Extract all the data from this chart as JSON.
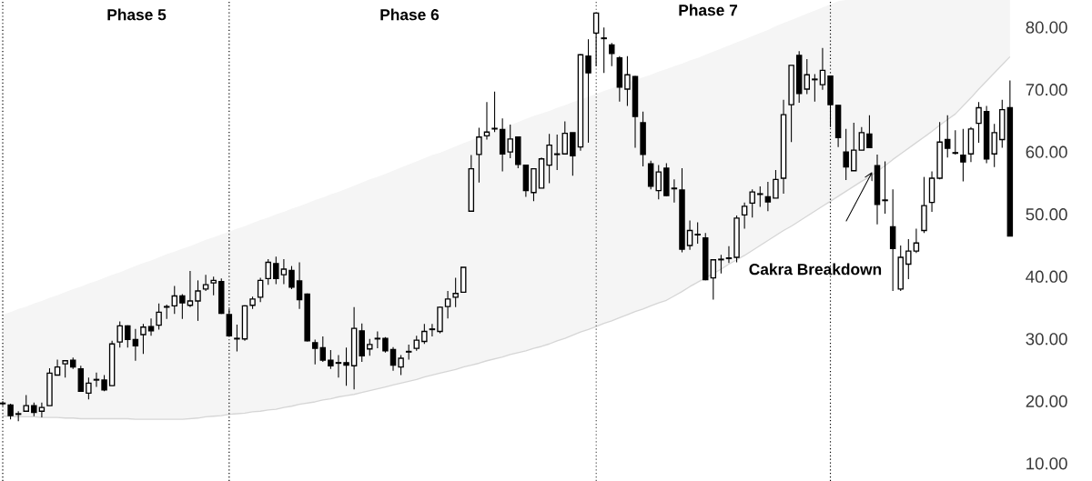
{
  "chart_data": {
    "type": "candlestick",
    "categories": [
      null,
      null,
      null,
      null,
      null,
      null,
      null,
      null,
      null,
      null,
      null,
      null,
      null,
      null,
      null,
      null,
      null,
      null,
      null,
      null,
      null,
      null,
      null,
      null,
      null,
      null,
      null,
      null,
      null,
      null,
      null,
      null,
      null,
      null,
      null,
      null,
      null,
      null,
      null,
      null,
      null,
      null,
      null,
      null,
      null,
      null,
      null,
      null,
      null,
      null,
      null,
      null,
      null,
      null,
      null,
      null,
      null,
      null,
      null,
      null,
      null,
      null,
      null,
      null,
      null,
      null,
      null,
      null,
      null,
      null,
      null,
      null,
      null,
      null,
      null,
      null,
      null,
      null,
      null,
      null,
      null,
      null,
      null,
      null,
      null,
      null,
      null,
      null,
      null,
      null,
      null,
      null,
      null,
      null,
      null,
      null,
      null,
      null,
      null,
      null,
      null,
      null,
      null,
      null,
      null,
      null,
      null,
      null,
      null,
      null,
      null,
      null,
      null,
      null,
      null,
      null,
      null,
      null,
      null,
      null,
      null,
      null,
      null,
      null,
      null,
      null,
      null,
      null,
      null,
      null
    ],
    "color": "#000000",
    "ohlc": [
      [
        19.7,
        20.0,
        19.3,
        19.6
      ],
      [
        19.4,
        19.6,
        17.1,
        17.7
      ],
      [
        18.0,
        18.4,
        16.8,
        17.9
      ],
      [
        18.4,
        21.0,
        18.3,
        19.3
      ],
      [
        19.3,
        19.8,
        17.6,
        18.2
      ],
      [
        18.4,
        19.8,
        17.4,
        19.0
      ],
      [
        19.3,
        25.3,
        19.3,
        24.5
      ],
      [
        24.2,
        26.7,
        24.2,
        25.5
      ],
      [
        26.0,
        26.6,
        23.8,
        26.5
      ],
      [
        26.6,
        27.0,
        25.2,
        25.5
      ],
      [
        25.2,
        25.7,
        21.5,
        21.6
      ],
      [
        21.3,
        23.8,
        20.3,
        22.9
      ],
      [
        23.5,
        24.6,
        22.3,
        23.4
      ],
      [
        23.4,
        24.2,
        21.6,
        21.8
      ],
      [
        22.5,
        29.7,
        22.5,
        29.2
      ],
      [
        29.5,
        32.8,
        28.6,
        32.1
      ],
      [
        32.1,
        32.2,
        28.6,
        29.9
      ],
      [
        29.9,
        31.6,
        26.5,
        28.9
      ],
      [
        30.7,
        32.4,
        27.6,
        31.9
      ],
      [
        32.0,
        33.3,
        30.5,
        31.3
      ],
      [
        32.2,
        35.7,
        31.5,
        34.3
      ],
      [
        35.2,
        35.5,
        33.2,
        35.1
      ],
      [
        35.3,
        38.5,
        34.0,
        36.9
      ],
      [
        36.9,
        37.2,
        33.2,
        35.8
      ],
      [
        35.4,
        40.9,
        35.1,
        36.1
      ],
      [
        36.1,
        39.4,
        32.9,
        37.7
      ],
      [
        38.0,
        40.3,
        37.7,
        38.7
      ],
      [
        39.0,
        40.0,
        37.0,
        39.4
      ],
      [
        39.2,
        39.7,
        34.0,
        34.1
      ],
      [
        33.9,
        34.8,
        30.4,
        30.5
      ],
      [
        30.1,
        32.3,
        28.0,
        30.0
      ],
      [
        30.0,
        35.4,
        29.7,
        35.3
      ],
      [
        35.4,
        36.8,
        34.8,
        36.4
      ],
      [
        36.7,
        39.8,
        35.9,
        39.4
      ],
      [
        39.7,
        42.8,
        38.7,
        42.3
      ],
      [
        42.1,
        43.2,
        38.8,
        39.7
      ],
      [
        40.3,
        42.8,
        38.8,
        41.2
      ],
      [
        41.0,
        41.7,
        38.0,
        38.3
      ],
      [
        39.3,
        42.3,
        34.8,
        36.3
      ],
      [
        37.2,
        37.3,
        29.6,
        29.7
      ],
      [
        29.4,
        29.9,
        25.9,
        28.5
      ],
      [
        28.6,
        30.4,
        26.3,
        26.6
      ],
      [
        26.6,
        28.2,
        25.2,
        25.7
      ],
      [
        26.2,
        27.4,
        23.8,
        26.1
      ],
      [
        26.2,
        28.6,
        22.5,
        25.8
      ],
      [
        25.7,
        35.1,
        21.9,
        31.7
      ],
      [
        31.3,
        32.5,
        26.3,
        27.3
      ],
      [
        28.4,
        30.0,
        27.3,
        29.1
      ],
      [
        30.1,
        31.2,
        28.5,
        30.0
      ],
      [
        30.1,
        30.3,
        27.8,
        28.1
      ],
      [
        28.3,
        28.7,
        24.9,
        25.8
      ],
      [
        25.5,
        27.4,
        24.2,
        26.9
      ],
      [
        27.9,
        29.1,
        26.7,
        28.0
      ],
      [
        28.5,
        30.5,
        28.1,
        29.8
      ],
      [
        29.6,
        32.4,
        29.2,
        31.2
      ],
      [
        31.5,
        32.4,
        30.4,
        31.6
      ],
      [
        31.2,
        35.2,
        30.9,
        35.1
      ],
      [
        35.2,
        37.7,
        33.3,
        36.4
      ],
      [
        36.7,
        39.8,
        35.1,
        37.3
      ],
      [
        37.5,
        41.5,
        37.5,
        41.5
      ],
      [
        50.5,
        59.5,
        50.5,
        57.3
      ],
      [
        59.6,
        63.9,
        55.1,
        62.4
      ],
      [
        62.6,
        68.0,
        62.0,
        63.2
      ],
      [
        63.7,
        69.7,
        63.2,
        63.8
      ],
      [
        63.6,
        65.4,
        56.9,
        59.7
      ],
      [
        60.0,
        64.4,
        59.0,
        62.1
      ],
      [
        62.4,
        62.4,
        57.4,
        58.0
      ],
      [
        57.9,
        57.9,
        52.8,
        53.8
      ],
      [
        53.5,
        57.3,
        52.1,
        57.3
      ],
      [
        54.2,
        59.1,
        54.2,
        58.9
      ],
      [
        57.9,
        62.9,
        55.0,
        61.1
      ],
      [
        59.6,
        62.8,
        57.1,
        59.7
      ],
      [
        59.7,
        64.9,
        59.7,
        63.0
      ],
      [
        63.1,
        63.1,
        56.2,
        59.4
      ],
      [
        60.8,
        75.7,
        60.2,
        75.6
      ],
      [
        75.4,
        78.1,
        61.5,
        72.7
      ],
      [
        79.1,
        82.4,
        73.8,
        82.3
      ],
      [
        78.3,
        80.0,
        72.7,
        78.2
      ],
      [
        77.2,
        77.5,
        73.8,
        75.8
      ],
      [
        75.1,
        75.4,
        68.1,
        70.4
      ],
      [
        70.1,
        75.4,
        67.4,
        72.4
      ],
      [
        72.1,
        72.2,
        60.7,
        65.7
      ],
      [
        64.7,
        66.5,
        57.7,
        59.6
      ],
      [
        58.1,
        58.6,
        54.0,
        54.5
      ],
      [
        53.8,
        57.9,
        52.4,
        56.8
      ],
      [
        57.4,
        58.2,
        52.9,
        53.0
      ],
      [
        54.2,
        55.6,
        51.9,
        54.1
      ],
      [
        53.9,
        57.4,
        43.9,
        44.4
      ],
      [
        45.0,
        49.0,
        44.3,
        47.4
      ],
      [
        46.7,
        48.7,
        45.3,
        46.8
      ],
      [
        46.2,
        47.0,
        39.4,
        39.5
      ],
      [
        39.8,
        42.7,
        36.3,
        42.7
      ],
      [
        42.7,
        43.5,
        40.5,
        42.8
      ],
      [
        42.9,
        44.9,
        42.2,
        43.0
      ],
      [
        43.1,
        49.8,
        42.3,
        49.4
      ],
      [
        49.9,
        51.9,
        47.7,
        51.3
      ],
      [
        51.8,
        54.0,
        49.5,
        53.6
      ],
      [
        53.2,
        54.5,
        51.2,
        53.3
      ],
      [
        52.8,
        55.2,
        50.5,
        52.0
      ],
      [
        52.6,
        57.1,
        52.6,
        55.6
      ],
      [
        55.8,
        68.4,
        53.3,
        66.0
      ],
      [
        67.6,
        73.9,
        61.6,
        73.9
      ],
      [
        75.5,
        76.2,
        67.9,
        69.4
      ],
      [
        70.1,
        74.9,
        69.3,
        72.4
      ],
      [
        71.6,
        72.5,
        68.1,
        71.7
      ],
      [
        70.8,
        76.7,
        70.0,
        73.1
      ],
      [
        72.2,
        72.2,
        64.0,
        67.6
      ],
      [
        67.5,
        67.5,
        60.8,
        62.3
      ],
      [
        60.0,
        63.7,
        55.5,
        57.6
      ],
      [
        57.0,
        64.7,
        57.0,
        60.3
      ],
      [
        60.3,
        64.0,
        60.3,
        63.1
      ],
      [
        62.9,
        65.9,
        60.7,
        60.7
      ],
      [
        57.8,
        59.6,
        48.4,
        51.6
      ],
      [
        52.3,
        58.5,
        50.1,
        52.2
      ],
      [
        48.0,
        54.0,
        37.7,
        44.5
      ],
      [
        38.0,
        45.0,
        37.7,
        43.1
      ],
      [
        42.0,
        46.0,
        39.6,
        44.1
      ],
      [
        44.1,
        47.7,
        43.8,
        45.4
      ],
      [
        47.4,
        56.0,
        47.0,
        51.4
      ],
      [
        51.9,
        56.9,
        50.4,
        55.8
      ],
      [
        55.8,
        64.8,
        55.6,
        61.6
      ],
      [
        62.0,
        65.9,
        59.1,
        60.6
      ],
      [
        59.9,
        63.5,
        59.6,
        59.8
      ],
      [
        59.5,
        63.7,
        55.3,
        58.4
      ],
      [
        59.7,
        64.0,
        58.4,
        63.7
      ],
      [
        64.6,
        68.0,
        61.5,
        67.1
      ],
      [
        66.5,
        67.4,
        58.2,
        58.9
      ],
      [
        59.7,
        64.5,
        57.6,
        63.1
      ],
      [
        62.0,
        68.4,
        60.7,
        66.8
      ],
      [
        67.1,
        71.5,
        46.5,
        46.5
      ]
    ],
    "series": [
      {
        "type": "line",
        "color": "#d6d6d6",
        "values": [
          17.6,
          17.6,
          17.5,
          17.5,
          17.5,
          17.4,
          17.4,
          17.4,
          17.3,
          17.3,
          17.2,
          17.2,
          17.2,
          17.2,
          17.2,
          17.2,
          17.2,
          17.1,
          17.1,
          17.1,
          17.1,
          17.1,
          17.1,
          17.1,
          17.2,
          17.3,
          17.5,
          17.6,
          17.7,
          17.9,
          18.0,
          18.1,
          18.3,
          18.4,
          18.6,
          18.7,
          19.0,
          19.2,
          19.5,
          19.7,
          19.9,
          20.2,
          20.4,
          20.7,
          20.9,
          21.1,
          21.4,
          21.7,
          22.0,
          22.3,
          22.6,
          22.9,
          23.2,
          23.5,
          23.9,
          24.2,
          24.5,
          24.8,
          25.1,
          25.5,
          25.8,
          26.1,
          26.5,
          26.8,
          27.1,
          27.5,
          27.8,
          28.1,
          28.5,
          28.8,
          29.2,
          29.7,
          30.1,
          30.6,
          31.1,
          31.5,
          32.0,
          32.5,
          32.9,
          33.4,
          33.9,
          34.4,
          34.8,
          35.3,
          35.8,
          36.2,
          36.9,
          37.6,
          38.4,
          39.1,
          39.8,
          40.5,
          41.2,
          42.0,
          42.7,
          43.4,
          44.2,
          45.0,
          45.8,
          46.6,
          47.4,
          48.1,
          48.9,
          49.7,
          50.5,
          51.3,
          52.1,
          52.9,
          53.7,
          54.5,
          55.3,
          56.0,
          56.9,
          57.8,
          58.8,
          59.7,
          60.6,
          61.5,
          62.4,
          63.3,
          64.3,
          65.2,
          66.1,
          67.4,
          68.7,
          70.1,
          71.4,
          72.7,
          74.0,
          75.3
        ],
        "lower": [
          17.6,
          17.6,
          17.5,
          17.5,
          17.5,
          17.4,
          17.4,
          17.4,
          17.3,
          17.3,
          17.2,
          17.2,
          17.2,
          17.2,
          17.2,
          17.2,
          17.2,
          17.1,
          17.1,
          17.1,
          17.1,
          17.1,
          17.1,
          17.1,
          17.2,
          17.3,
          17.5,
          17.6,
          17.7,
          17.9,
          18.0,
          18.1,
          18.3,
          18.4,
          18.6,
          18.7,
          19.0,
          19.2,
          19.5,
          19.7,
          19.9,
          20.2,
          20.4,
          20.7,
          20.9,
          21.1,
          21.4,
          21.7,
          22.0,
          22.3,
          22.6,
          22.9,
          23.2,
          23.5,
          23.9,
          24.2,
          24.5,
          24.8,
          25.1,
          25.5,
          25.8,
          26.1,
          26.5,
          26.8,
          27.1,
          27.5,
          27.8,
          28.1,
          28.5,
          28.8,
          29.2,
          29.7,
          30.1,
          30.6,
          31.1,
          31.5,
          32.0,
          32.5,
          32.9,
          33.4,
          33.9,
          34.4,
          34.8,
          35.3,
          35.8,
          36.2,
          36.9,
          37.6,
          38.4,
          39.1,
          39.8,
          40.5,
          41.2,
          42.0,
          42.7,
          43.4,
          44.2,
          45.0,
          45.8,
          46.6,
          47.4,
          48.1,
          48.9,
          49.7,
          50.5,
          51.3,
          52.1,
          52.9,
          53.7,
          54.5,
          55.3,
          56.0,
          56.9,
          57.8,
          58.8,
          59.7,
          60.6,
          61.5,
          62.4,
          63.3,
          64.3,
          65.2,
          66.1,
          67.4,
          68.7,
          70.1,
          71.4,
          72.7,
          74.0,
          75.3
        ],
        "upper": [
          33.9,
          34.3,
          34.8,
          35.2,
          35.7,
          36.1,
          36.6,
          37.0,
          37.5,
          38.0,
          38.4,
          38.9,
          39.3,
          39.8,
          40.3,
          40.7,
          41.2,
          41.7,
          42.2,
          42.6,
          43.1,
          43.6,
          44.0,
          44.5,
          44.9,
          45.4,
          45.9,
          46.3,
          46.8,
          47.2,
          47.7,
          48.1,
          48.6,
          49.1,
          49.5,
          50.0,
          50.4,
          50.9,
          51.3,
          51.8,
          52.3,
          52.7,
          53.2,
          53.6,
          54.1,
          54.6,
          55.1,
          55.6,
          56.0,
          56.5,
          57.0,
          57.5,
          58.0,
          58.5,
          59.0,
          59.5,
          59.9,
          60.4,
          60.9,
          61.4,
          61.9,
          62.4,
          62.9,
          63.4,
          63.8,
          64.3,
          64.8,
          65.3,
          65.8,
          66.2,
          66.6,
          67.1,
          67.5,
          68.0,
          68.4,
          68.9,
          69.3,
          69.8,
          70.2,
          70.7,
          71.1,
          71.6,
          72.0,
          72.4,
          72.9,
          73.3,
          73.8,
          74.2,
          74.7,
          75.1,
          75.6,
          76.1,
          76.6,
          77.1,
          77.6,
          78.1,
          78.6,
          79.1,
          79.6,
          80.2,
          80.7,
          81.2,
          81.7,
          82.2,
          82.7,
          83.2,
          83.7,
          84.2,
          84.4,
          84.4,
          84.4,
          84.4,
          84.4,
          84.4,
          84.4,
          84.4,
          84.4,
          84.4,
          84.4,
          84.4,
          84.4,
          84.4,
          84.4,
          84.4,
          84.4,
          84.4,
          84.4,
          84.4,
          84.4,
          84.4
        ]
      }
    ],
    "ylim": [
      7.2,
      84.4
    ],
    "yticks": [
      {
        "value": 10,
        "label": "10.00"
      },
      {
        "value": 20,
        "label": "20.00"
      },
      {
        "value": 30,
        "label": "30.00"
      },
      {
        "value": 40,
        "label": "40.00"
      },
      {
        "value": 50,
        "label": "50.00"
      },
      {
        "value": 60,
        "label": "60.00"
      },
      {
        "value": 70,
        "label": "70.00"
      },
      {
        "value": 80,
        "label": "80.00"
      }
    ],
    "tick_labels": "y",
    "annotations": [
      "Phase 5",
      "Phase 6",
      "Phase 7",
      "Cakra Breakdown"
    ]
  }
}
